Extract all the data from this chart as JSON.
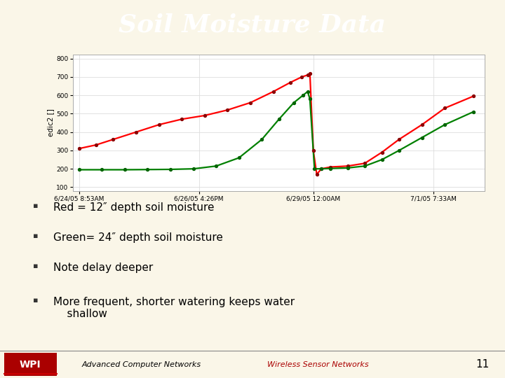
{
  "title": "Soil Moisture Data",
  "title_bg": "#8B0000",
  "title_color": "#FFFFFF",
  "slide_bg": "#FAF6E8",
  "chart_bg": "#FFFFFF",
  "chart_border": "#AAAAAA",
  "bullet_points": [
    "Red = 12″ depth soil moisture",
    "Green= 24″ depth soil moisture",
    "Note delay deeper",
    "More frequent, shorter watering keeps water\n    shallow"
  ],
  "x_labels": [
    "6/24/05 8:53AM",
    "6/26/05 4:26PM",
    "6/29/05 12:00AM",
    "7/1/05 7:33AM"
  ],
  "ylabel": "edic2 []",
  "yticks": [
    100,
    200,
    300,
    400,
    500,
    600,
    700,
    800
  ],
  "ylim": [
    80,
    820
  ],
  "xlim": [
    -0.05,
    3.55
  ],
  "red_x": [
    0.0,
    0.15,
    0.3,
    0.5,
    0.7,
    0.9,
    1.1,
    1.3,
    1.5,
    1.7,
    1.85,
    1.95,
    2.0,
    2.02,
    2.05,
    2.08,
    2.12,
    2.2,
    2.35,
    2.5,
    2.65,
    2.8,
    3.0,
    3.2,
    3.45
  ],
  "red_y": [
    310,
    330,
    360,
    400,
    440,
    470,
    490,
    520,
    560,
    620,
    670,
    700,
    710,
    720,
    300,
    170,
    200,
    210,
    215,
    230,
    290,
    360,
    440,
    530,
    595
  ],
  "green_x": [
    0.0,
    0.2,
    0.4,
    0.6,
    0.8,
    1.0,
    1.2,
    1.4,
    1.6,
    1.75,
    1.88,
    1.96,
    2.0,
    2.02,
    2.06,
    2.12,
    2.2,
    2.35,
    2.5,
    2.65,
    2.8,
    3.0,
    3.2,
    3.45
  ],
  "green_y": [
    195,
    195,
    195,
    196,
    197,
    200,
    215,
    260,
    360,
    470,
    560,
    600,
    620,
    580,
    200,
    200,
    202,
    205,
    215,
    250,
    300,
    370,
    440,
    510
  ],
  "footer_left": "Advanced Computer Networks",
  "footer_right": "Wireless Sensor Networks",
  "footer_num": "11",
  "footer_bg": "#C8C8C8",
  "wpi_color": "#AA0000",
  "wpi_underline": "#CC0000",
  "grid_color": "#DDDDDD",
  "tick_fontsize": 6.5,
  "ylabel_fontsize": 7.5
}
